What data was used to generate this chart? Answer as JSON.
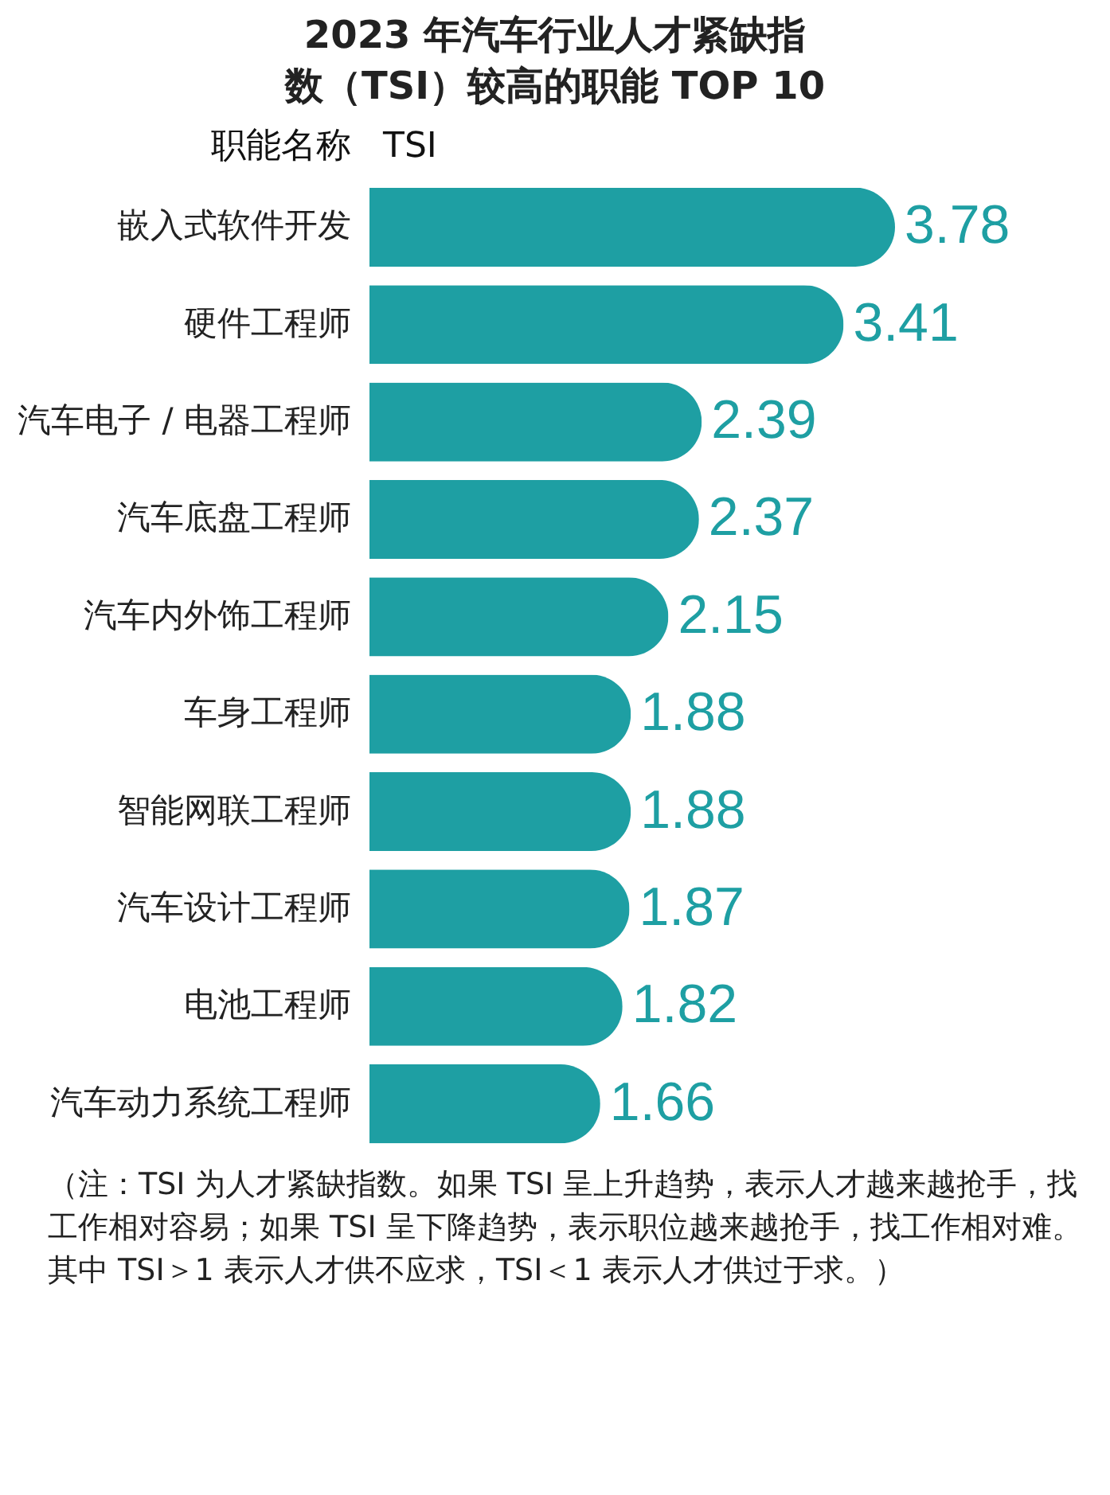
{
  "chart_data": {
    "type": "bar",
    "orientation": "horizontal",
    "title": "2023 年汽车行业人才紧缺指数（TSI）较高的职能 TOP 10",
    "ylabel": "职能名称",
    "xlabel": "TSI",
    "categories": [
      "嵌入式软件开发",
      "硬件工程师",
      "汽车电子 / 电器工程师",
      "汽车底盘工程师",
      "汽车内外饰工程师",
      "车身工程师",
      "智能网联工程师",
      "汽车设计工程师",
      "电池工程师",
      "汽车动力系统工程师"
    ],
    "values": [
      3.78,
      3.41,
      2.39,
      2.37,
      2.15,
      1.88,
      1.88,
      1.87,
      1.82,
      1.66
    ],
    "color": "#1e9fa3",
    "data_labels": true,
    "tick_labels": "y",
    "grid": false,
    "annotations": [
      "（注：TSI 为人才紧缺指数。如果 TSI 呈上升趋势，表示人才越来越抢手，找工作相对容易；如果 TSI 呈下降趋势，表示职位越来越抢手，找工作相对难。其中 TSI＞1 表示人才供不应求，TSI＜1 表示人才供过于求。）"
    ]
  }
}
